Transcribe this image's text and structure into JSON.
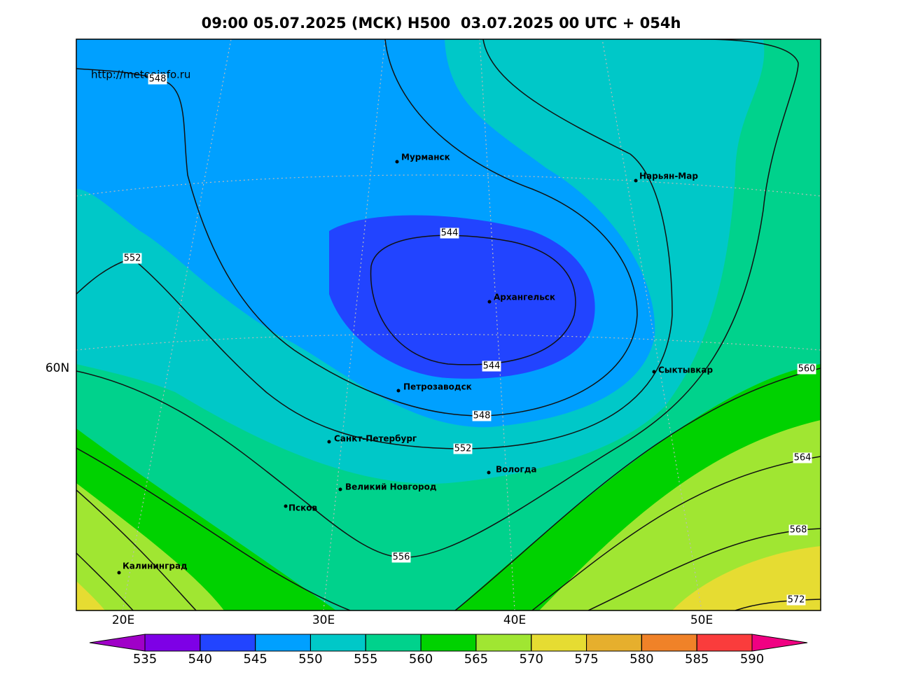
{
  "header": {
    "title": "09:00 05.07.2025 (МСК) H500  03.07.2025 00 UTC + 054h"
  },
  "source": "http://meteoinfo.ru",
  "axes": {
    "longitude_labels": [
      "20E",
      "30E",
      "40E",
      "50E"
    ],
    "latitude_labels": [
      "60N"
    ]
  },
  "contour_labels": [
    548,
    552,
    544,
    544,
    548,
    552,
    556,
    560,
    564,
    568,
    572
  ],
  "cities": [
    "Мурманск",
    "Нарьян-Мар",
    "Архангельск",
    "Сыктывкар",
    "Петрозаводск",
    "Санкт-Петербург",
    "Вологда",
    "Великий Новгород",
    "Псков",
    "Калининград"
  ],
  "colorbar": {
    "levels": [
      535,
      540,
      545,
      550,
      555,
      560,
      565,
      570,
      575,
      580,
      585,
      590
    ],
    "colors": [
      "#7e00e6",
      "#2244ff",
      "#00a0ff",
      "#00c8c8",
      "#00d28c",
      "#00d200",
      "#a0e632",
      "#e6dc32",
      "#e6af2d",
      "#f08228",
      "#fa3c3c"
    ],
    "under_color": "#a000c8",
    "over_color": "#f00082"
  }
}
